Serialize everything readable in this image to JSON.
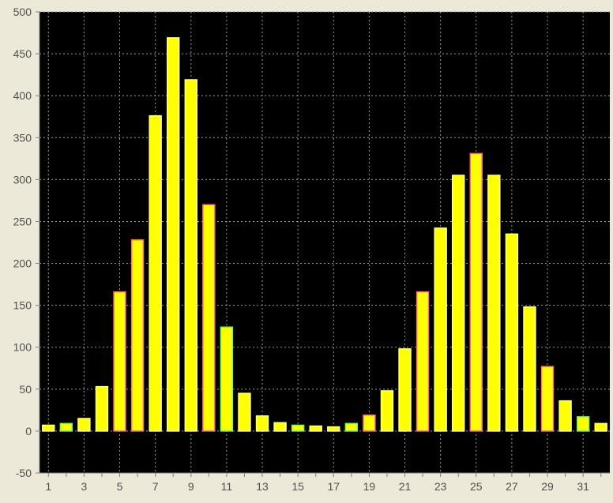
{
  "chart_data": {
    "type": "bar",
    "title": "",
    "xlabel": "",
    "ylabel": "",
    "ylim": [
      -50,
      500
    ],
    "yticks": [
      -50,
      0,
      50,
      100,
      150,
      200,
      250,
      300,
      350,
      400,
      450,
      500
    ],
    "xlim": [
      0.5,
      32.5
    ],
    "xticks": [
      1,
      3,
      5,
      7,
      9,
      11,
      13,
      15,
      17,
      19,
      21,
      23,
      25,
      27,
      29,
      31
    ],
    "grid": true,
    "categories": [
      1,
      2,
      3,
      4,
      5,
      6,
      7,
      8,
      9,
      10,
      11,
      12,
      13,
      14,
      15,
      16,
      17,
      18,
      19,
      20,
      21,
      22,
      23,
      24,
      25,
      26,
      27,
      28,
      29,
      30,
      31,
      32
    ],
    "values": [
      7,
      9,
      15,
      53,
      166,
      228,
      376,
      469,
      419,
      270,
      124,
      45,
      18,
      10,
      7,
      6,
      5,
      9,
      19,
      48,
      98,
      166,
      242,
      305,
      331,
      305,
      235,
      148,
      77,
      36,
      17,
      9
    ],
    "colors": {
      "plot_background": "#000000",
      "page_background": "#ece9d8",
      "bar_fill": "#ffff00",
      "grid": "#9a9a9a",
      "tick_text": "#505050",
      "axis": "#808080",
      "bar_outline_default": "#ffff99",
      "bar_outline_accent": "#ff6699",
      "bar_outline_green": "#66ff66"
    },
    "bar_outlines": [
      "default",
      "green",
      "default",
      "default",
      "accent",
      "accent",
      "default",
      "default",
      "default",
      "accent",
      "green",
      "default",
      "default",
      "default",
      "green",
      "default",
      "default",
      "green",
      "accent",
      "default",
      "default",
      "accent",
      "default",
      "default",
      "accent",
      "default",
      "default",
      "default",
      "accent",
      "default",
      "green",
      "default"
    ]
  }
}
